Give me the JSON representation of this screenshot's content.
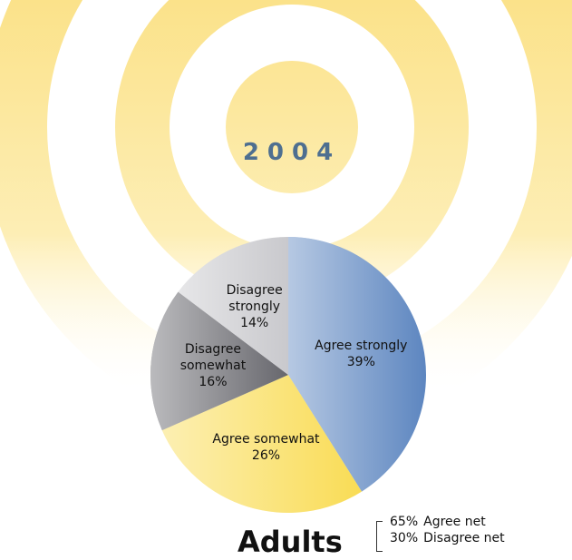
{
  "chart_data": {
    "type": "pie",
    "title": "2004",
    "subtitle": "Adults",
    "categories": [
      "Agree strongly",
      "Agree somewhat",
      "Disagree somewhat",
      "Disagree strongly"
    ],
    "values": [
      39,
      26,
      16,
      14
    ],
    "value_labels": [
      "39%",
      "26%",
      "16%",
      "14%"
    ],
    "colors": [
      "#5d86c0",
      "#f9dc55",
      "#67676d",
      "#c9c9cd"
    ],
    "annotations": [
      {
        "value": "65%",
        "text": "Agree net"
      },
      {
        "value": "30%",
        "text": "Disagree net"
      }
    ]
  }
}
